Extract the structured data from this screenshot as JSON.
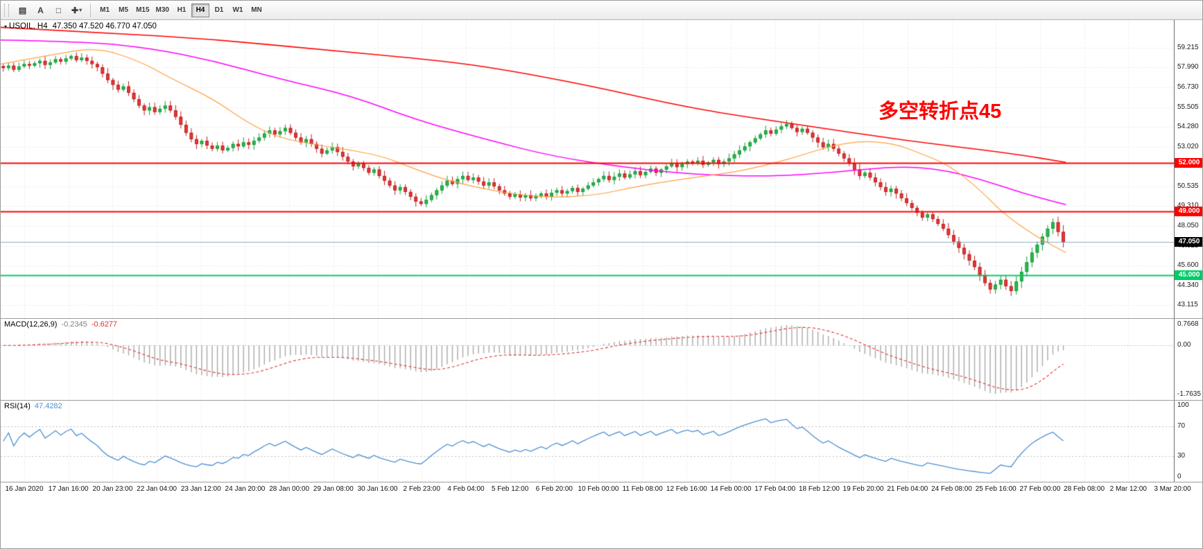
{
  "toolbar": {
    "tools": [
      {
        "name": "chart-type",
        "glyph": "▤"
      },
      {
        "name": "text-tool",
        "glyph": "A"
      },
      {
        "name": "shapes-tool",
        "glyph": "□"
      },
      {
        "name": "crosshair-tool",
        "glyph": "✚",
        "caret": "▾"
      }
    ],
    "timeframes": [
      "M1",
      "M5",
      "M15",
      "M30",
      "H1",
      "H4",
      "D1",
      "W1",
      "MN"
    ],
    "active_timeframe": "H4"
  },
  "chart": {
    "title_dropdown_icon": "▾",
    "symbol_period": "USOIL, H4",
    "ohlc": "47.350 47.520 46.770 47.050",
    "annotation": {
      "text": "多空转折点45",
      "color": "#FF0000"
    },
    "levels": [
      {
        "label": "52.000",
        "value": 52.0,
        "color": "#FF0000"
      },
      {
        "label": "49.000",
        "value": 49.0,
        "color": "#FF0000"
      },
      {
        "label": "45.000",
        "value": 45.0,
        "color": "#00CC66"
      }
    ],
    "current_price": {
      "label": "47.050",
      "value": 47.05,
      "line_color": "#8FA8C0",
      "tag_bg": "#000000",
      "tag_text": "#FFFFFF"
    }
  },
  "chart_data": {
    "type": "candlestick",
    "symbol": "USOIL",
    "timeframe": "H4",
    "up_color": "#149A38",
    "up_fill": "#2DBA4E",
    "down_color": "#BB1F1F",
    "down_fill": "#E43A3A",
    "price_axis": {
      "min": 42.3,
      "max": 60.95,
      "ticks": [
        59.215,
        57.99,
        56.73,
        55.505,
        54.28,
        53.02,
        51.795,
        50.535,
        49.31,
        48.05,
        46.825,
        45.6,
        44.34,
        43.115
      ]
    },
    "time_axis": {
      "labels": [
        "16 Jan 2020",
        "17 Jan 16:00",
        "20 Jan 23:00",
        "22 Jan 04:00",
        "23 Jan 12:00",
        "24 Jan 20:00",
        "28 Jan 00:00",
        "29 Jan 08:00",
        "30 Jan 16:00",
        "2 Feb 23:00",
        "4 Feb 04:00",
        "5 Feb 12:00",
        "6 Feb 20:00",
        "10 Feb 00:00",
        "11 Feb 08:00",
        "12 Feb 16:00",
        "14 Feb 00:00",
        "17 Feb 04:00",
        "18 Feb 12:00",
        "19 Feb 20:00",
        "21 Feb 04:00",
        "24 Feb 08:00",
        "25 Feb 16:00",
        "27 Feb 00:00",
        "28 Feb 08:00",
        "2 Mar 12:00",
        "3 Mar 20:00"
      ]
    },
    "closes": [
      57.95,
      58.1,
      57.85,
      58.05,
      58.2,
      58.1,
      58.25,
      58.4,
      58.15,
      58.3,
      58.5,
      58.35,
      58.55,
      58.7,
      58.45,
      58.6,
      58.4,
      58.2,
      58.0,
      57.6,
      57.2,
      56.9,
      56.6,
      56.8,
      56.4,
      56.0,
      55.6,
      55.3,
      55.5,
      55.2,
      55.4,
      55.6,
      55.3,
      54.9,
      54.4,
      53.9,
      53.5,
      53.2,
      53.4,
      53.1,
      52.9,
      53.1,
      52.8,
      52.95,
      53.2,
      53.05,
      53.3,
      53.15,
      53.4,
      53.6,
      53.85,
      54.05,
      53.8,
      54.0,
      54.2,
      53.9,
      53.6,
      53.3,
      53.5,
      53.2,
      52.9,
      52.6,
      52.8,
      53.0,
      52.7,
      52.4,
      52.1,
      51.8,
      52.0,
      51.7,
      51.4,
      51.6,
      51.2,
      50.9,
      50.6,
      50.3,
      50.5,
      50.2,
      49.9,
      49.6,
      49.45,
      49.7,
      50.0,
      50.3,
      50.6,
      50.9,
      50.7,
      51.0,
      51.2,
      50.95,
      51.1,
      50.85,
      50.6,
      50.8,
      50.55,
      50.3,
      50.1,
      49.9,
      50.05,
      49.85,
      50.0,
      49.8,
      49.95,
      50.1,
      49.9,
      50.15,
      50.3,
      50.1,
      50.25,
      50.45,
      50.2,
      50.4,
      50.6,
      50.8,
      51.0,
      51.2,
      50.95,
      51.15,
      51.35,
      51.1,
      51.3,
      51.5,
      51.25,
      51.45,
      51.65,
      51.4,
      51.6,
      51.8,
      52.0,
      51.75,
      51.95,
      52.1,
      52.0,
      52.15,
      51.9,
      52.05,
      52.2,
      51.95,
      52.1,
      52.3,
      52.55,
      52.8,
      53.05,
      53.3,
      53.55,
      53.8,
      54.05,
      53.85,
      54.1,
      54.3,
      54.45,
      54.2,
      53.95,
      54.15,
      53.9,
      53.6,
      53.3,
      53.0,
      53.2,
      52.9,
      52.6,
      52.3,
      52.0,
      51.6,
      51.2,
      51.4,
      51.1,
      50.8,
      50.5,
      50.2,
      50.4,
      50.1,
      49.8,
      49.5,
      49.2,
      48.9,
      48.6,
      48.8,
      48.5,
      48.2,
      47.9,
      47.5,
      47.1,
      46.7,
      46.3,
      45.9,
      45.5,
      45.0,
      44.5,
      44.1,
      44.4,
      44.7,
      44.3,
      44.0,
      44.6,
      45.2,
      45.8,
      46.4,
      46.9,
      47.4,
      47.9,
      48.3,
      47.7,
      47.05
    ],
    "moving_averages": [
      {
        "name": "ma-slow",
        "color": "#FF0000",
        "width": 1.6,
        "points": [
          [
            0,
            60.5
          ],
          [
            0.1,
            60.15
          ],
          [
            0.2,
            59.75
          ],
          [
            0.3,
            59.1
          ],
          [
            0.4,
            58.5
          ],
          [
            0.46,
            58.0
          ],
          [
            0.55,
            56.9
          ],
          [
            0.65,
            55.4
          ],
          [
            0.75,
            54.4
          ],
          [
            0.85,
            53.4
          ],
          [
            0.95,
            52.6
          ],
          [
            1,
            52.05
          ]
        ]
      },
      {
        "name": "ma-mid",
        "color": "#FF00FF",
        "width": 1.5,
        "points": [
          [
            0,
            59.7
          ],
          [
            0.08,
            59.6
          ],
          [
            0.14,
            59.2
          ],
          [
            0.2,
            58.4
          ],
          [
            0.26,
            57.3
          ],
          [
            0.33,
            56.2
          ],
          [
            0.39,
            54.7
          ],
          [
            0.46,
            53.4
          ],
          [
            0.52,
            52.4
          ],
          [
            0.59,
            51.7
          ],
          [
            0.65,
            51.3
          ],
          [
            0.72,
            51.15
          ],
          [
            0.78,
            51.4
          ],
          [
            0.84,
            51.8
          ],
          [
            0.88,
            51.65
          ],
          [
            0.92,
            51.0
          ],
          [
            0.96,
            50.1
          ],
          [
            1,
            49.4
          ]
        ]
      },
      {
        "name": "ma-fast",
        "color": "#FFA040",
        "width": 1.2,
        "points": [
          [
            0,
            58.2
          ],
          [
            0.05,
            58.8
          ],
          [
            0.09,
            59.25
          ],
          [
            0.13,
            58.4
          ],
          [
            0.16,
            57.3
          ],
          [
            0.2,
            56.0
          ],
          [
            0.23,
            54.6
          ],
          [
            0.26,
            53.6
          ],
          [
            0.3,
            53.1
          ],
          [
            0.33,
            52.8
          ],
          [
            0.36,
            52.4
          ],
          [
            0.39,
            51.6
          ],
          [
            0.42,
            50.9
          ],
          [
            0.46,
            50.3
          ],
          [
            0.49,
            50.0
          ],
          [
            0.52,
            49.85
          ],
          [
            0.56,
            50.0
          ],
          [
            0.59,
            50.45
          ],
          [
            0.62,
            50.8
          ],
          [
            0.65,
            51.1
          ],
          [
            0.69,
            51.45
          ],
          [
            0.72,
            51.9
          ],
          [
            0.75,
            52.45
          ],
          [
            0.78,
            53.1
          ],
          [
            0.81,
            53.4
          ],
          [
            0.84,
            53.2
          ],
          [
            0.86,
            52.7
          ],
          [
            0.89,
            51.9
          ],
          [
            0.92,
            50.3
          ],
          [
            0.94,
            48.9
          ],
          [
            0.97,
            47.5
          ],
          [
            0.99,
            46.75
          ],
          [
            1,
            46.4
          ]
        ]
      }
    ],
    "indicators": {
      "macd": {
        "label": "MACD(12,26,9)",
        "value_main": "-0.2345",
        "value_signal": "-0.6277",
        "axis_labels": [
          "0.7668",
          "0.00",
          "-1.7635"
        ],
        "fast": 12,
        "slow": 26,
        "signal_period": 9,
        "histogram_color": "#A8A8A8",
        "signal_color": "#E03030",
        "value_main_color": "#808080"
      },
      "rsi": {
        "label": "RSI(14)",
        "value": "47.4282",
        "axis_labels": [
          "100",
          "70",
          "30",
          "0"
        ],
        "period": 14,
        "levels": [
          70,
          30
        ],
        "line_color": "#4A8FD0"
      }
    }
  }
}
